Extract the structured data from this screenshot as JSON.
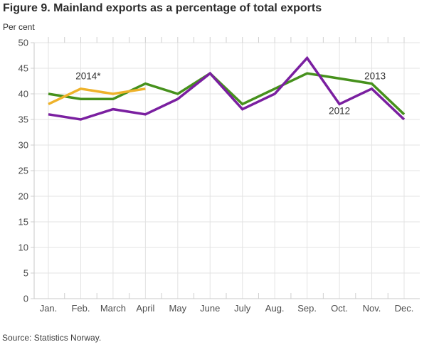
{
  "header": {
    "title": "Figure 9. Mainland exports as a percentage of total exports",
    "unit": "Per cent"
  },
  "footer": {
    "source": "Source: Statistics Norway."
  },
  "chart_data": {
    "type": "line",
    "title": "Figure 9. Mainland exports as a percentage of total exports",
    "ylabel": "Per cent",
    "xlabel": "",
    "categories": [
      "Jan.",
      "Feb.",
      "March",
      "April",
      "May",
      "June",
      "July",
      "Aug.",
      "Sep.",
      "Oct.",
      "Nov.",
      "Dec."
    ],
    "series": [
      {
        "name": "2013",
        "color": "#46911c",
        "values": [
          40,
          39,
          39,
          42,
          40,
          44,
          38,
          41,
          44,
          43,
          42,
          36
        ]
      },
      {
        "name": "2014*",
        "color": "#eeb22a",
        "values": [
          38,
          41,
          40,
          41
        ]
      },
      {
        "name": "2012",
        "color": "#7a1fa0",
        "values": [
          36,
          35,
          37,
          36,
          39,
          44,
          37,
          40,
          47,
          38,
          41,
          35
        ]
      }
    ],
    "ylim": [
      0,
      50
    ],
    "ytick_step": 5,
    "grid": true,
    "legend": "inline-annotations",
    "annotations": [
      {
        "text": "2014*",
        "month_index": 1.23,
        "value": 43.5
      },
      {
        "text": "2012",
        "month_index": 9.0,
        "value": 36.7
      },
      {
        "text": "2013",
        "month_index": 10.1,
        "value": 43.5
      }
    ],
    "colors": {
      "grid": "#e3e3e3",
      "axis": "#c9c9c9",
      "tick": "#cfcfcf",
      "tick_label": "#4d4d4d",
      "annotation": "#333333"
    }
  }
}
